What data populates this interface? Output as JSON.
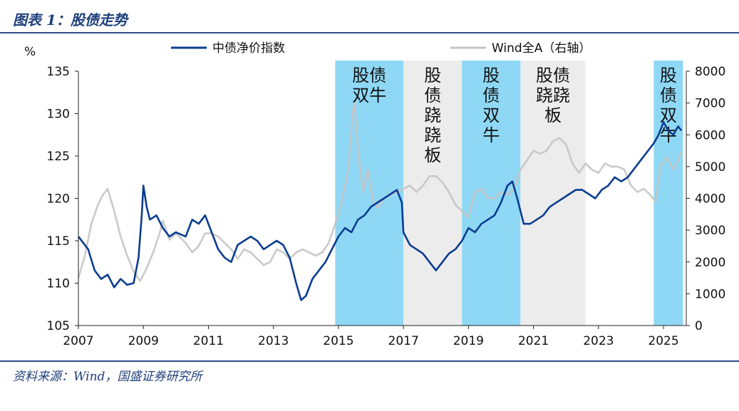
{
  "header": {
    "title": "图表 1：股债走势"
  },
  "footer": {
    "source": "资料来源：Wind，国盛证券研究所"
  },
  "colors": {
    "bond": "#0b3d91",
    "equity": "#c4c4c4",
    "bull_band": "#8fd8f5",
    "seesaw_band": "#ececec",
    "axis": "#222222"
  },
  "chart_data": {
    "type": "line",
    "ylabel_left": "%",
    "legend_position": "top",
    "x_ticks": [
      "2007",
      "2009",
      "2011",
      "2013",
      "2015",
      "2017",
      "2019",
      "2021",
      "2023",
      "2025"
    ],
    "ylim_left": [
      105,
      135
    ],
    "yticks_left": [
      105,
      110,
      115,
      120,
      125,
      130,
      135
    ],
    "ylim_right": [
      0,
      8000
    ],
    "yticks_right": [
      0,
      1000,
      2000,
      3000,
      4000,
      5000,
      6000,
      7000,
      8000
    ],
    "grid": false,
    "regions": [
      {
        "start": 2014.9,
        "end": 2017.0,
        "type": "bull",
        "label": [
          "股债",
          "双牛"
        ],
        "layout": "h"
      },
      {
        "start": 2017.0,
        "end": 2018.8,
        "type": "seesaw",
        "label": [
          "股",
          "债",
          "跷",
          "跷",
          "板"
        ],
        "layout": "v"
      },
      {
        "start": 2018.8,
        "end": 2020.6,
        "type": "bull",
        "label": [
          "股",
          "债",
          "双",
          "牛"
        ],
        "layout": "v"
      },
      {
        "start": 2020.6,
        "end": 2022.6,
        "type": "seesaw",
        "label": [
          "股债",
          "跷跷",
          "板"
        ],
        "layout": "h"
      },
      {
        "start": 2024.7,
        "end": 2025.6,
        "type": "bull",
        "label": [
          "股",
          "债",
          "双",
          "牛"
        ],
        "layout": "v"
      }
    ],
    "series": [
      {
        "name": "中债净价指数",
        "axis": "left",
        "color": "#0b3d91",
        "points": [
          [
            2007.0,
            115.5
          ],
          [
            2007.3,
            114.0
          ],
          [
            2007.5,
            111.5
          ],
          [
            2007.7,
            110.5
          ],
          [
            2007.9,
            111.0
          ],
          [
            2008.1,
            109.5
          ],
          [
            2008.3,
            110.5
          ],
          [
            2008.5,
            109.8
          ],
          [
            2008.7,
            110.0
          ],
          [
            2008.85,
            113.0
          ],
          [
            2008.95,
            118.0
          ],
          [
            2009.0,
            121.5
          ],
          [
            2009.1,
            119.0
          ],
          [
            2009.2,
            117.5
          ],
          [
            2009.4,
            118.0
          ],
          [
            2009.6,
            116.5
          ],
          [
            2009.8,
            115.5
          ],
          [
            2010.0,
            116.0
          ],
          [
            2010.3,
            115.5
          ],
          [
            2010.5,
            117.5
          ],
          [
            2010.7,
            117.0
          ],
          [
            2010.9,
            118.0
          ],
          [
            2011.1,
            116.0
          ],
          [
            2011.3,
            114.0
          ],
          [
            2011.5,
            113.0
          ],
          [
            2011.7,
            112.5
          ],
          [
            2011.9,
            114.5
          ],
          [
            2012.1,
            115.0
          ],
          [
            2012.3,
            115.5
          ],
          [
            2012.5,
            115.0
          ],
          [
            2012.7,
            114.0
          ],
          [
            2012.9,
            114.5
          ],
          [
            2013.1,
            115.0
          ],
          [
            2013.3,
            114.5
          ],
          [
            2013.5,
            113.0
          ],
          [
            2013.7,
            110.0
          ],
          [
            2013.85,
            108.0
          ],
          [
            2014.0,
            108.5
          ],
          [
            2014.2,
            110.5
          ],
          [
            2014.4,
            111.5
          ],
          [
            2014.6,
            112.5
          ],
          [
            2014.8,
            114.0
          ],
          [
            2015.0,
            115.5
          ],
          [
            2015.2,
            116.5
          ],
          [
            2015.4,
            116.0
          ],
          [
            2015.6,
            117.5
          ],
          [
            2015.8,
            118.0
          ],
          [
            2016.0,
            119.0
          ],
          [
            2016.2,
            119.5
          ],
          [
            2016.4,
            120.0
          ],
          [
            2016.6,
            120.5
          ],
          [
            2016.8,
            121.0
          ],
          [
            2016.95,
            119.5
          ],
          [
            2017.0,
            116.0
          ],
          [
            2017.2,
            114.5
          ],
          [
            2017.4,
            114.0
          ],
          [
            2017.6,
            113.5
          ],
          [
            2017.8,
            112.5
          ],
          [
            2018.0,
            111.5
          ],
          [
            2018.2,
            112.5
          ],
          [
            2018.4,
            113.5
          ],
          [
            2018.6,
            114.0
          ],
          [
            2018.8,
            115.0
          ],
          [
            2019.0,
            116.5
          ],
          [
            2019.2,
            116.0
          ],
          [
            2019.4,
            117.0
          ],
          [
            2019.6,
            117.5
          ],
          [
            2019.8,
            118.0
          ],
          [
            2020.0,
            119.5
          ],
          [
            2020.2,
            121.5
          ],
          [
            2020.35,
            122.0
          ],
          [
            2020.5,
            120.0
          ],
          [
            2020.7,
            117.0
          ],
          [
            2020.9,
            117.0
          ],
          [
            2021.1,
            117.5
          ],
          [
            2021.3,
            118.0
          ],
          [
            2021.5,
            119.0
          ],
          [
            2021.7,
            119.5
          ],
          [
            2021.9,
            120.0
          ],
          [
            2022.1,
            120.5
          ],
          [
            2022.3,
            121.0
          ],
          [
            2022.5,
            121.0
          ],
          [
            2022.7,
            120.5
          ],
          [
            2022.9,
            120.0
          ],
          [
            2023.1,
            121.0
          ],
          [
            2023.3,
            121.5
          ],
          [
            2023.5,
            122.5
          ],
          [
            2023.7,
            122.0
          ],
          [
            2023.9,
            122.5
          ],
          [
            2024.1,
            123.5
          ],
          [
            2024.3,
            124.5
          ],
          [
            2024.5,
            125.5
          ],
          [
            2024.7,
            126.5
          ],
          [
            2024.85,
            127.5
          ],
          [
            2025.0,
            129.0
          ],
          [
            2025.15,
            128.0
          ],
          [
            2025.3,
            127.5
          ],
          [
            2025.45,
            128.5
          ],
          [
            2025.55,
            128.0
          ]
        ]
      },
      {
        "name": "Wind全A（右轴）",
        "axis": "right",
        "color": "#c4c4c4",
        "points": [
          [
            2007.0,
            1500
          ],
          [
            2007.2,
            2200
          ],
          [
            2007.4,
            3200
          ],
          [
            2007.6,
            3800
          ],
          [
            2007.75,
            4100
          ],
          [
            2007.9,
            4300
          ],
          [
            2008.1,
            3600
          ],
          [
            2008.3,
            2800
          ],
          [
            2008.5,
            2200
          ],
          [
            2008.7,
            1700
          ],
          [
            2008.9,
            1400
          ],
          [
            2009.1,
            1800
          ],
          [
            2009.3,
            2300
          ],
          [
            2009.5,
            2900
          ],
          [
            2009.6,
            3300
          ],
          [
            2009.8,
            2700
          ],
          [
            2010.0,
            2900
          ],
          [
            2010.3,
            2600
          ],
          [
            2010.5,
            2300
          ],
          [
            2010.7,
            2500
          ],
          [
            2010.9,
            2900
          ],
          [
            2011.1,
            2900
          ],
          [
            2011.3,
            2800
          ],
          [
            2011.5,
            2600
          ],
          [
            2011.7,
            2400
          ],
          [
            2011.9,
            2100
          ],
          [
            2012.1,
            2400
          ],
          [
            2012.3,
            2300
          ],
          [
            2012.5,
            2100
          ],
          [
            2012.7,
            1900
          ],
          [
            2012.9,
            2000
          ],
          [
            2013.1,
            2400
          ],
          [
            2013.3,
            2300
          ],
          [
            2013.5,
            2100
          ],
          [
            2013.7,
            2300
          ],
          [
            2013.9,
            2400
          ],
          [
            2014.1,
            2300
          ],
          [
            2014.3,
            2200
          ],
          [
            2014.5,
            2300
          ],
          [
            2014.7,
            2600
          ],
          [
            2014.9,
            3200
          ],
          [
            2015.1,
            3900
          ],
          [
            2015.3,
            4900
          ],
          [
            2015.45,
            6800
          ],
          [
            2015.5,
            7000
          ],
          [
            2015.6,
            5500
          ],
          [
            2015.75,
            4200
          ],
          [
            2015.9,
            4900
          ],
          [
            2016.05,
            4000
          ],
          [
            2016.2,
            3700
          ],
          [
            2016.4,
            4000
          ],
          [
            2016.6,
            4100
          ],
          [
            2016.8,
            4200
          ],
          [
            2017.0,
            4300
          ],
          [
            2017.2,
            4400
          ],
          [
            2017.4,
            4200
          ],
          [
            2017.6,
            4400
          ],
          [
            2017.8,
            4700
          ],
          [
            2018.0,
            4700
          ],
          [
            2018.2,
            4500
          ],
          [
            2018.4,
            4200
          ],
          [
            2018.6,
            3800
          ],
          [
            2018.8,
            3600
          ],
          [
            2019.0,
            3400
          ],
          [
            2019.2,
            4200
          ],
          [
            2019.4,
            4300
          ],
          [
            2019.6,
            4000
          ],
          [
            2019.8,
            4000
          ],
          [
            2020.0,
            4200
          ],
          [
            2020.2,
            4100
          ],
          [
            2020.4,
            4300
          ],
          [
            2020.6,
            4900
          ],
          [
            2020.8,
            5200
          ],
          [
            2021.0,
            5500
          ],
          [
            2021.2,
            5400
          ],
          [
            2021.4,
            5500
          ],
          [
            2021.6,
            5800
          ],
          [
            2021.8,
            5900
          ],
          [
            2022.0,
            5700
          ],
          [
            2022.2,
            5100
          ],
          [
            2022.4,
            4800
          ],
          [
            2022.6,
            5100
          ],
          [
            2022.8,
            4900
          ],
          [
            2023.0,
            4800
          ],
          [
            2023.2,
            5100
          ],
          [
            2023.4,
            5000
          ],
          [
            2023.6,
            5000
          ],
          [
            2023.8,
            4900
          ],
          [
            2024.0,
            4400
          ],
          [
            2024.2,
            4200
          ],
          [
            2024.4,
            4300
          ],
          [
            2024.6,
            4100
          ],
          [
            2024.75,
            3900
          ],
          [
            2024.9,
            5000
          ],
          [
            2025.1,
            5300
          ],
          [
            2025.3,
            4900
          ],
          [
            2025.45,
            5200
          ],
          [
            2025.55,
            5500
          ]
        ]
      }
    ]
  }
}
